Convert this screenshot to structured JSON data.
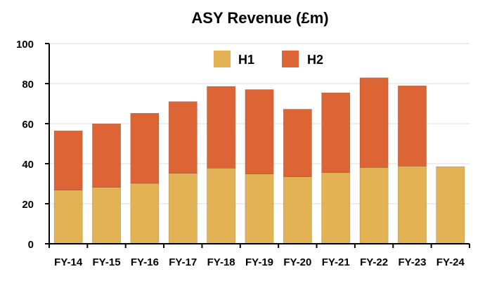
{
  "chart_data": {
    "type": "bar",
    "stacked": true,
    "title": "ASY Revenue (£m)",
    "xlabel": "",
    "ylabel": "",
    "categories": [
      "FY-14",
      "FY-15",
      "FY-16",
      "FY-17",
      "FY-18",
      "FY-19",
      "FY-20",
      "FY-21",
      "FY-22",
      "FY-23",
      "FY-24"
    ],
    "series": [
      {
        "name": "H1",
        "color": "#E3B254",
        "values": [
          26.8,
          28.2,
          30.2,
          35.2,
          37.8,
          34.9,
          33.5,
          35.6,
          38.1,
          38.8,
          38.5
        ]
      },
      {
        "name": "H2",
        "color": "#DD6434",
        "values": [
          29.6,
          31.7,
          35.0,
          35.8,
          40.8,
          42.1,
          33.7,
          39.8,
          44.8,
          40.1,
          null
        ]
      }
    ],
    "ylim": [
      0,
      100
    ],
    "yticks": [
      0,
      20,
      40,
      60,
      80,
      100
    ],
    "grid": "horizontal",
    "legend_position": "top-center"
  }
}
